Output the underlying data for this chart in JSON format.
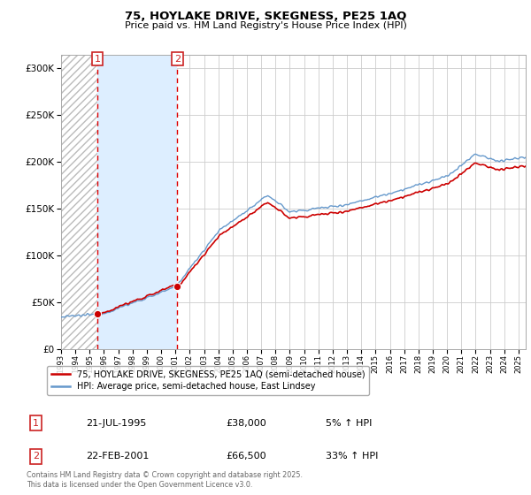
{
  "title1": "75, HOYLAKE DRIVE, SKEGNESS, PE25 1AQ",
  "title2": "Price paid vs. HM Land Registry's House Price Index (HPI)",
  "ylabel_ticks": [
    "£0",
    "£50K",
    "£100K",
    "£150K",
    "£200K",
    "£250K",
    "£300K"
  ],
  "ytick_vals": [
    0,
    50000,
    100000,
    150000,
    200000,
    250000,
    300000
  ],
  "ylim": [
    0,
    315000
  ],
  "xlim_start": 1993.0,
  "xlim_end": 2025.5,
  "purchase1_year": 1995.55,
  "purchase1_price": 38000,
  "purchase2_year": 2001.13,
  "purchase2_price": 66500,
  "legend_entry1": "75, HOYLAKE DRIVE, SKEGNESS, PE25 1AQ (semi-detached house)",
  "legend_entry2": "HPI: Average price, semi-detached house, East Lindsey",
  "table_row1_num": "1",
  "table_row1_date": "21-JUL-1995",
  "table_row1_price": "£38,000",
  "table_row1_hpi": "5% ↑ HPI",
  "table_row2_num": "2",
  "table_row2_date": "22-FEB-2001",
  "table_row2_price": "£66,500",
  "table_row2_hpi": "33% ↑ HPI",
  "footer": "Contains HM Land Registry data © Crown copyright and database right 2025.\nThis data is licensed under the Open Government Licence v3.0.",
  "red_line_color": "#cc0000",
  "blue_line_color": "#6699cc",
  "grid_color": "#cccccc",
  "blue_fill_color": "#ddeeff",
  "bg_color": "#ffffff",
  "dashed_red": "#dd0000",
  "num_box_color": "#cc2222"
}
